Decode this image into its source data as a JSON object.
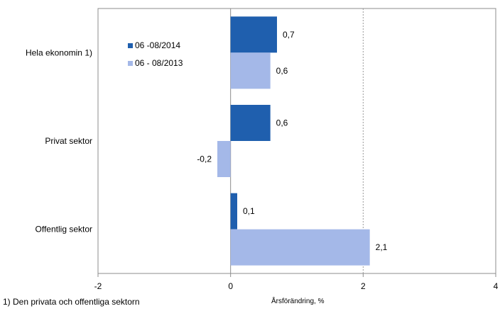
{
  "chart_data": {
    "type": "bar",
    "orientation": "horizontal",
    "categories": [
      "Hela ekonomin 1)",
      "Privat sektor",
      "Offentlig sektor"
    ],
    "series": [
      {
        "name": "06 -08/2014",
        "values": [
          0.7,
          0.6,
          0.1
        ],
        "labels": [
          "0,7",
          "0,6",
          "0,1"
        ],
        "color": "#1f5fae"
      },
      {
        "name": "06 - 08/2013",
        "values": [
          0.6,
          -0.2,
          2.1
        ],
        "labels": [
          "0,6",
          "-0,2",
          "2,1"
        ],
        "color": "#a4b8e8"
      }
    ],
    "xlim": [
      -2,
      4
    ],
    "xticks": [
      -2,
      0,
      2,
      4
    ],
    "xtick_labels": [
      "-2",
      "0",
      "2",
      "4"
    ],
    "xlabel": "Årsförändring, %",
    "gridlines": "vertical dashed at 2",
    "legend_position": "top-left"
  },
  "footnote": "1) Den privata och offentliga sektorn"
}
